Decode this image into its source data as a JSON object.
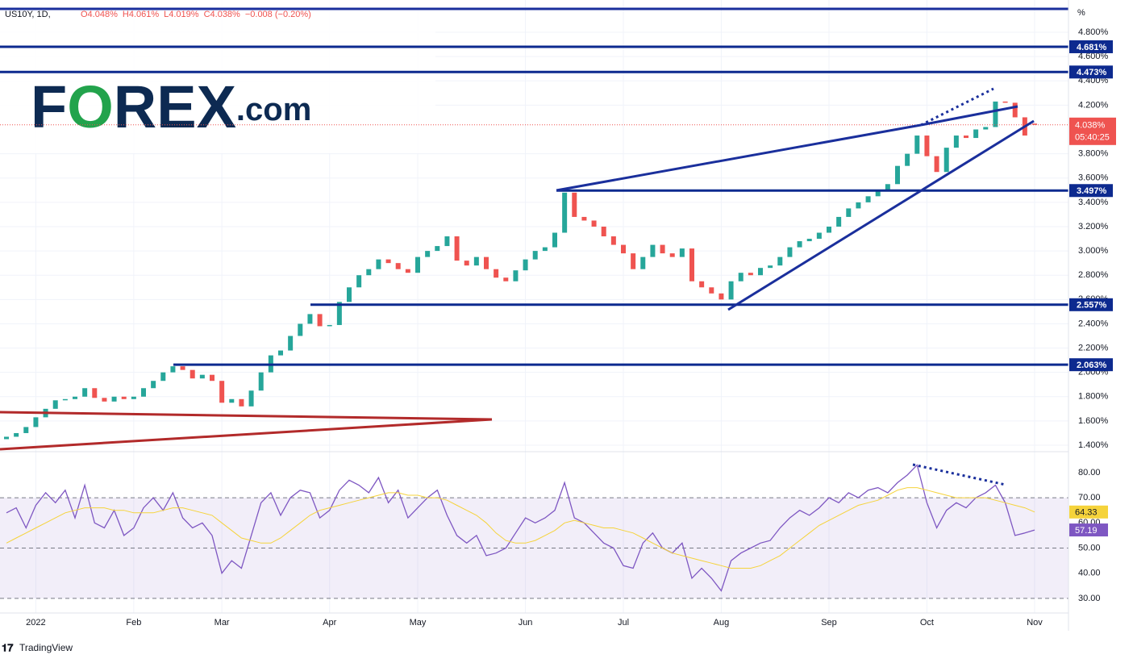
{
  "header": {
    "symbol": "US10Y, 1D,",
    "ohlc": [
      "O4.048%",
      "H4.061%",
      "L4.019%",
      "C4.038%",
      "−0.008 (−0.20%)"
    ]
  },
  "logo": [
    "F",
    "O",
    "REX",
    ".com"
  ],
  "footer": "TradingView",
  "chart_data": [
    {
      "type": "candlestick",
      "name": "US10Y",
      "unit": "%",
      "up_color": "#26a69a",
      "down_color": "#ef5350",
      "open": [
        1.45,
        1.47,
        1.5,
        1.55,
        1.63,
        1.7,
        1.77,
        1.78,
        1.8,
        1.87,
        1.79,
        1.76,
        1.8,
        1.78,
        1.8,
        1.87,
        1.93,
        2.0,
        2.05,
        2.02,
        1.95,
        1.98,
        1.93,
        1.75,
        1.78,
        1.72,
        1.85,
        2.0,
        2.14,
        2.18,
        2.3,
        2.4,
        2.48,
        2.38,
        2.39,
        2.58,
        2.7,
        2.8,
        2.85,
        2.93,
        2.9,
        2.85,
        2.82,
        2.95,
        3.0,
        3.04,
        3.12,
        2.92,
        2.88,
        2.95,
        2.85,
        2.78,
        2.75,
        2.84,
        2.93,
        3.0,
        3.03,
        3.15,
        3.48,
        3.28,
        3.25,
        3.2,
        3.12,
        3.05,
        2.98,
        2.85,
        2.95,
        3.05,
        2.98,
        2.95,
        3.02,
        2.75,
        2.7,
        2.65,
        2.6,
        2.75,
        2.82,
        2.8,
        2.86,
        2.88,
        2.95,
        3.03,
        3.08,
        3.1,
        3.15,
        3.2,
        3.28,
        3.35,
        3.4,
        3.45,
        3.5,
        3.55,
        3.7,
        3.8,
        3.95,
        3.78,
        3.65,
        3.85,
        3.95,
        3.93,
        4.0,
        4.02,
        4.23,
        4.22,
        4.1,
        4.048
      ],
      "close": [
        1.47,
        1.5,
        1.55,
        1.63,
        1.7,
        1.77,
        1.78,
        1.8,
        1.87,
        1.79,
        1.76,
        1.8,
        1.78,
        1.8,
        1.87,
        1.93,
        2.0,
        2.05,
        2.02,
        1.95,
        1.98,
        1.93,
        1.75,
        1.78,
        1.72,
        1.85,
        2.0,
        2.14,
        2.18,
        2.3,
        2.4,
        2.48,
        2.38,
        2.39,
        2.58,
        2.7,
        2.8,
        2.85,
        2.93,
        2.9,
        2.85,
        2.82,
        2.95,
        3.0,
        3.04,
        3.12,
        2.92,
        2.88,
        2.95,
        2.85,
        2.78,
        2.75,
        2.84,
        2.93,
        3.0,
        3.03,
        3.15,
        3.48,
        3.28,
        3.25,
        3.2,
        3.12,
        3.05,
        2.98,
        2.85,
        2.95,
        3.05,
        2.98,
        2.95,
        3.02,
        2.75,
        2.7,
        2.65,
        2.6,
        2.75,
        2.82,
        2.8,
        2.86,
        2.88,
        2.95,
        3.03,
        3.08,
        3.1,
        3.15,
        3.2,
        3.28,
        3.35,
        3.4,
        3.45,
        3.5,
        3.55,
        3.7,
        3.8,
        3.95,
        3.78,
        3.65,
        3.85,
        3.95,
        3.93,
        4.0,
        4.02,
        4.23,
        4.22,
        4.1,
        3.95,
        4.038
      ],
      "xticks": [
        {
          "value": 3,
          "label": "2022"
        },
        {
          "value": 13,
          "label": "Feb"
        },
        {
          "value": 22,
          "label": "Mar"
        },
        {
          "value": 33,
          "label": "Apr"
        },
        {
          "value": 42,
          "label": "May"
        },
        {
          "value": 53,
          "label": "Jun"
        },
        {
          "value": 63,
          "label": "Jul"
        },
        {
          "value": 73,
          "label": "Aug"
        },
        {
          "value": 84,
          "label": "Sep"
        },
        {
          "value": 94,
          "label": "Oct"
        },
        {
          "value": 105,
          "label": "Nov"
        }
      ],
      "ylim": [
        1.347,
        5.066
      ],
      "yticks": [
        {
          "value": 1.4,
          "label": "1.400%"
        },
        {
          "value": 1.6,
          "label": "1.600%"
        },
        {
          "value": 1.8,
          "label": "1.800%"
        },
        {
          "value": 2.0,
          "label": "2.000%"
        },
        {
          "value": 2.2,
          "label": "2.200%"
        },
        {
          "value": 2.4,
          "label": "2.400%"
        },
        {
          "value": 2.6,
          "label": "2.600%"
        },
        {
          "value": 2.8,
          "label": "2.800%"
        },
        {
          "value": 3.0,
          "label": "3.000%"
        },
        {
          "value": 3.2,
          "label": "3.200%"
        },
        {
          "value": 3.4,
          "label": "3.400%"
        },
        {
          "value": 3.6,
          "label": "3.600%"
        },
        {
          "value": 3.8,
          "label": "3.800%"
        },
        {
          "value": 4.2,
          "label": "4.200%"
        },
        {
          "value": 4.4,
          "label": "4.400%"
        },
        {
          "value": 4.6,
          "label": "4.600%"
        },
        {
          "value": 4.8,
          "label": "4.800%"
        }
      ],
      "levels": [
        {
          "value": 4.681,
          "label": "4.681%"
        },
        {
          "value": 4.473,
          "label": "4.473%"
        },
        {
          "value": 3.497,
          "label": "3.497%"
        },
        {
          "value": 2.557,
          "label": "2.557%"
        },
        {
          "value": 2.063,
          "label": "2.063%"
        }
      ],
      "level_color": "#0d2a8f",
      "last": {
        "value": 4.038,
        "label": "4.038%",
        "countdown": "05:40:25",
        "color": "#ef5350"
      },
      "grid": true
    },
    {
      "type": "line",
      "name": "RSI",
      "series": [
        {
          "color": "#7e57c2",
          "values": [
            64,
            66,
            58,
            67,
            72,
            68,
            73,
            62,
            75,
            60,
            58,
            65,
            55,
            58,
            66,
            70,
            65,
            72,
            62,
            58,
            60,
            55,
            40,
            45,
            42,
            55,
            68,
            72,
            63,
            70,
            73,
            72,
            62,
            65,
            73,
            77,
            75,
            72,
            78,
            68,
            73,
            62,
            66,
            70,
            73,
            63,
            55,
            52,
            55,
            47,
            48,
            50,
            56,
            62,
            60,
            62,
            65,
            76,
            62,
            60,
            56,
            52,
            50,
            43,
            42,
            52,
            56,
            50,
            48,
            52,
            38,
            42,
            38,
            33,
            45,
            48,
            50,
            52,
            53,
            58,
            62,
            65,
            63,
            66,
            70,
            68,
            72,
            70,
            73,
            74,
            72,
            76,
            79,
            83,
            68,
            58,
            65,
            68,
            66,
            70,
            72,
            75,
            68,
            55,
            56,
            57.19
          ],
          "last_label": "57.19"
        },
        {
          "color": "#f5d33b",
          "values": [
            52,
            54,
            56,
            58,
            60,
            62,
            64,
            65,
            66,
            66,
            66,
            65,
            65,
            64,
            64,
            64,
            65,
            66,
            66,
            65,
            64,
            63,
            60,
            57,
            54,
            53,
            52,
            52,
            54,
            57,
            60,
            63,
            65,
            66,
            67,
            68,
            69,
            70,
            71,
            72,
            72,
            71,
            71,
            70,
            70,
            69,
            67,
            65,
            63,
            60,
            56,
            53,
            52,
            52,
            53,
            55,
            57,
            60,
            61,
            60,
            59,
            58,
            58,
            57,
            56,
            54,
            52,
            50,
            48,
            47,
            46,
            45,
            44,
            43,
            42,
            42,
            42,
            43,
            45,
            47,
            50,
            53,
            56,
            59,
            61,
            63,
            65,
            67,
            68,
            69,
            71,
            73,
            74,
            74,
            73,
            72,
            71,
            70,
            70,
            70,
            70,
            69,
            68,
            67,
            66,
            64.33
          ],
          "last_label": "64.33"
        }
      ],
      "ylim": [
        24.2,
        88.3
      ],
      "yticks": [
        {
          "value": 30,
          "label": "30.00"
        },
        {
          "value": 40,
          "label": "40.00"
        },
        {
          "value": 50,
          "label": "50.00"
        },
        {
          "value": 60,
          "label": "60.00"
        },
        {
          "value": 70,
          "label": "70.00"
        },
        {
          "value": 80,
          "label": "80.00"
        }
      ],
      "bands": [
        30,
        50,
        70
      ]
    }
  ]
}
